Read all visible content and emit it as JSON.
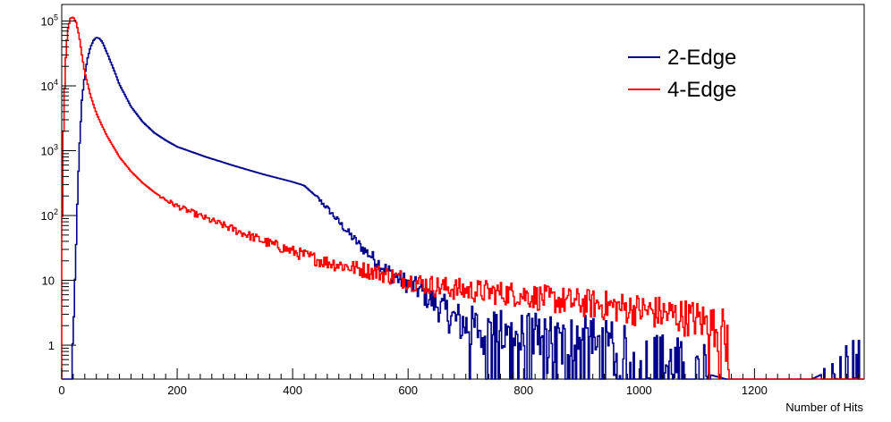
{
  "chart_data": {
    "type": "line",
    "title": "",
    "xlabel": "Number of Hits",
    "ylabel": "",
    "xlim": [
      0,
      1390
    ],
    "ylim": [
      0.3,
      180000
    ],
    "y_scale": "log",
    "grid": false,
    "legend_position": "top-right",
    "x_ticks": [
      "0",
      "200",
      "400",
      "600",
      "800",
      "1000",
      "1200"
    ],
    "y_ticks": [
      {
        "base": "1",
        "exp": ""
      },
      {
        "base": "10",
        "exp": ""
      },
      {
        "base": "10",
        "exp": "2"
      },
      {
        "base": "10",
        "exp": "3"
      },
      {
        "base": "10",
        "exp": "4"
      },
      {
        "base": "10",
        "exp": "5"
      }
    ],
    "series": [
      {
        "name": "2-Edge",
        "color": "#00008b",
        "x": [
          0,
          10,
          15,
          20,
          25,
          30,
          35,
          40,
          45,
          50,
          55,
          60,
          65,
          70,
          80,
          90,
          100,
          120,
          140,
          160,
          180,
          200,
          250,
          300,
          350,
          400,
          420,
          440,
          460,
          480,
          500,
          520,
          540,
          560,
          580,
          600,
          620,
          640,
          660,
          680,
          700,
          750,
          800,
          850,
          900,
          950,
          1000,
          1050,
          1100,
          1150,
          1200,
          1250,
          1300,
          1350,
          1390
        ],
        "y": [
          0.3,
          0.3,
          0.3,
          1,
          40,
          900,
          6000,
          15000,
          27000,
          40000,
          50000,
          56000,
          54000,
          48000,
          30000,
          18000,
          10500,
          4800,
          2800,
          1900,
          1450,
          1150,
          800,
          580,
          430,
          330,
          290,
          200,
          130,
          80,
          50,
          32,
          22,
          15,
          11,
          9,
          7,
          5,
          3.5,
          2.5,
          2,
          1.5,
          1.2,
          1,
          1,
          0.8,
          0.6,
          0.5,
          0.4,
          0.3,
          0.3,
          0.3,
          0.3,
          0.5,
          0.5
        ]
      },
      {
        "name": "4-Edge",
        "color": "#ff0000",
        "x": [
          0,
          3,
          6,
          10,
          15,
          20,
          25,
          30,
          35,
          40,
          50,
          60,
          70,
          80,
          100,
          120,
          140,
          160,
          180,
          200,
          250,
          300,
          350,
          400,
          450,
          500,
          550,
          600,
          650,
          700,
          750,
          800,
          850,
          900,
          950,
          1000,
          1050,
          1100,
          1130,
          1150,
          1160,
          1200,
          1300,
          1390
        ],
        "y": [
          20,
          2000,
          20000,
          70000,
          110000,
          115000,
          95000,
          60000,
          30000,
          16000,
          7000,
          3800,
          2400,
          1600,
          800,
          480,
          320,
          230,
          175,
          140,
          90,
          60,
          40,
          28,
          20,
          16,
          13,
          10,
          8,
          7,
          6.5,
          6,
          5,
          4.5,
          4,
          3.5,
          3,
          2.5,
          2,
          1.5,
          0.3,
          0.3,
          0.3,
          0.3
        ]
      }
    ]
  }
}
